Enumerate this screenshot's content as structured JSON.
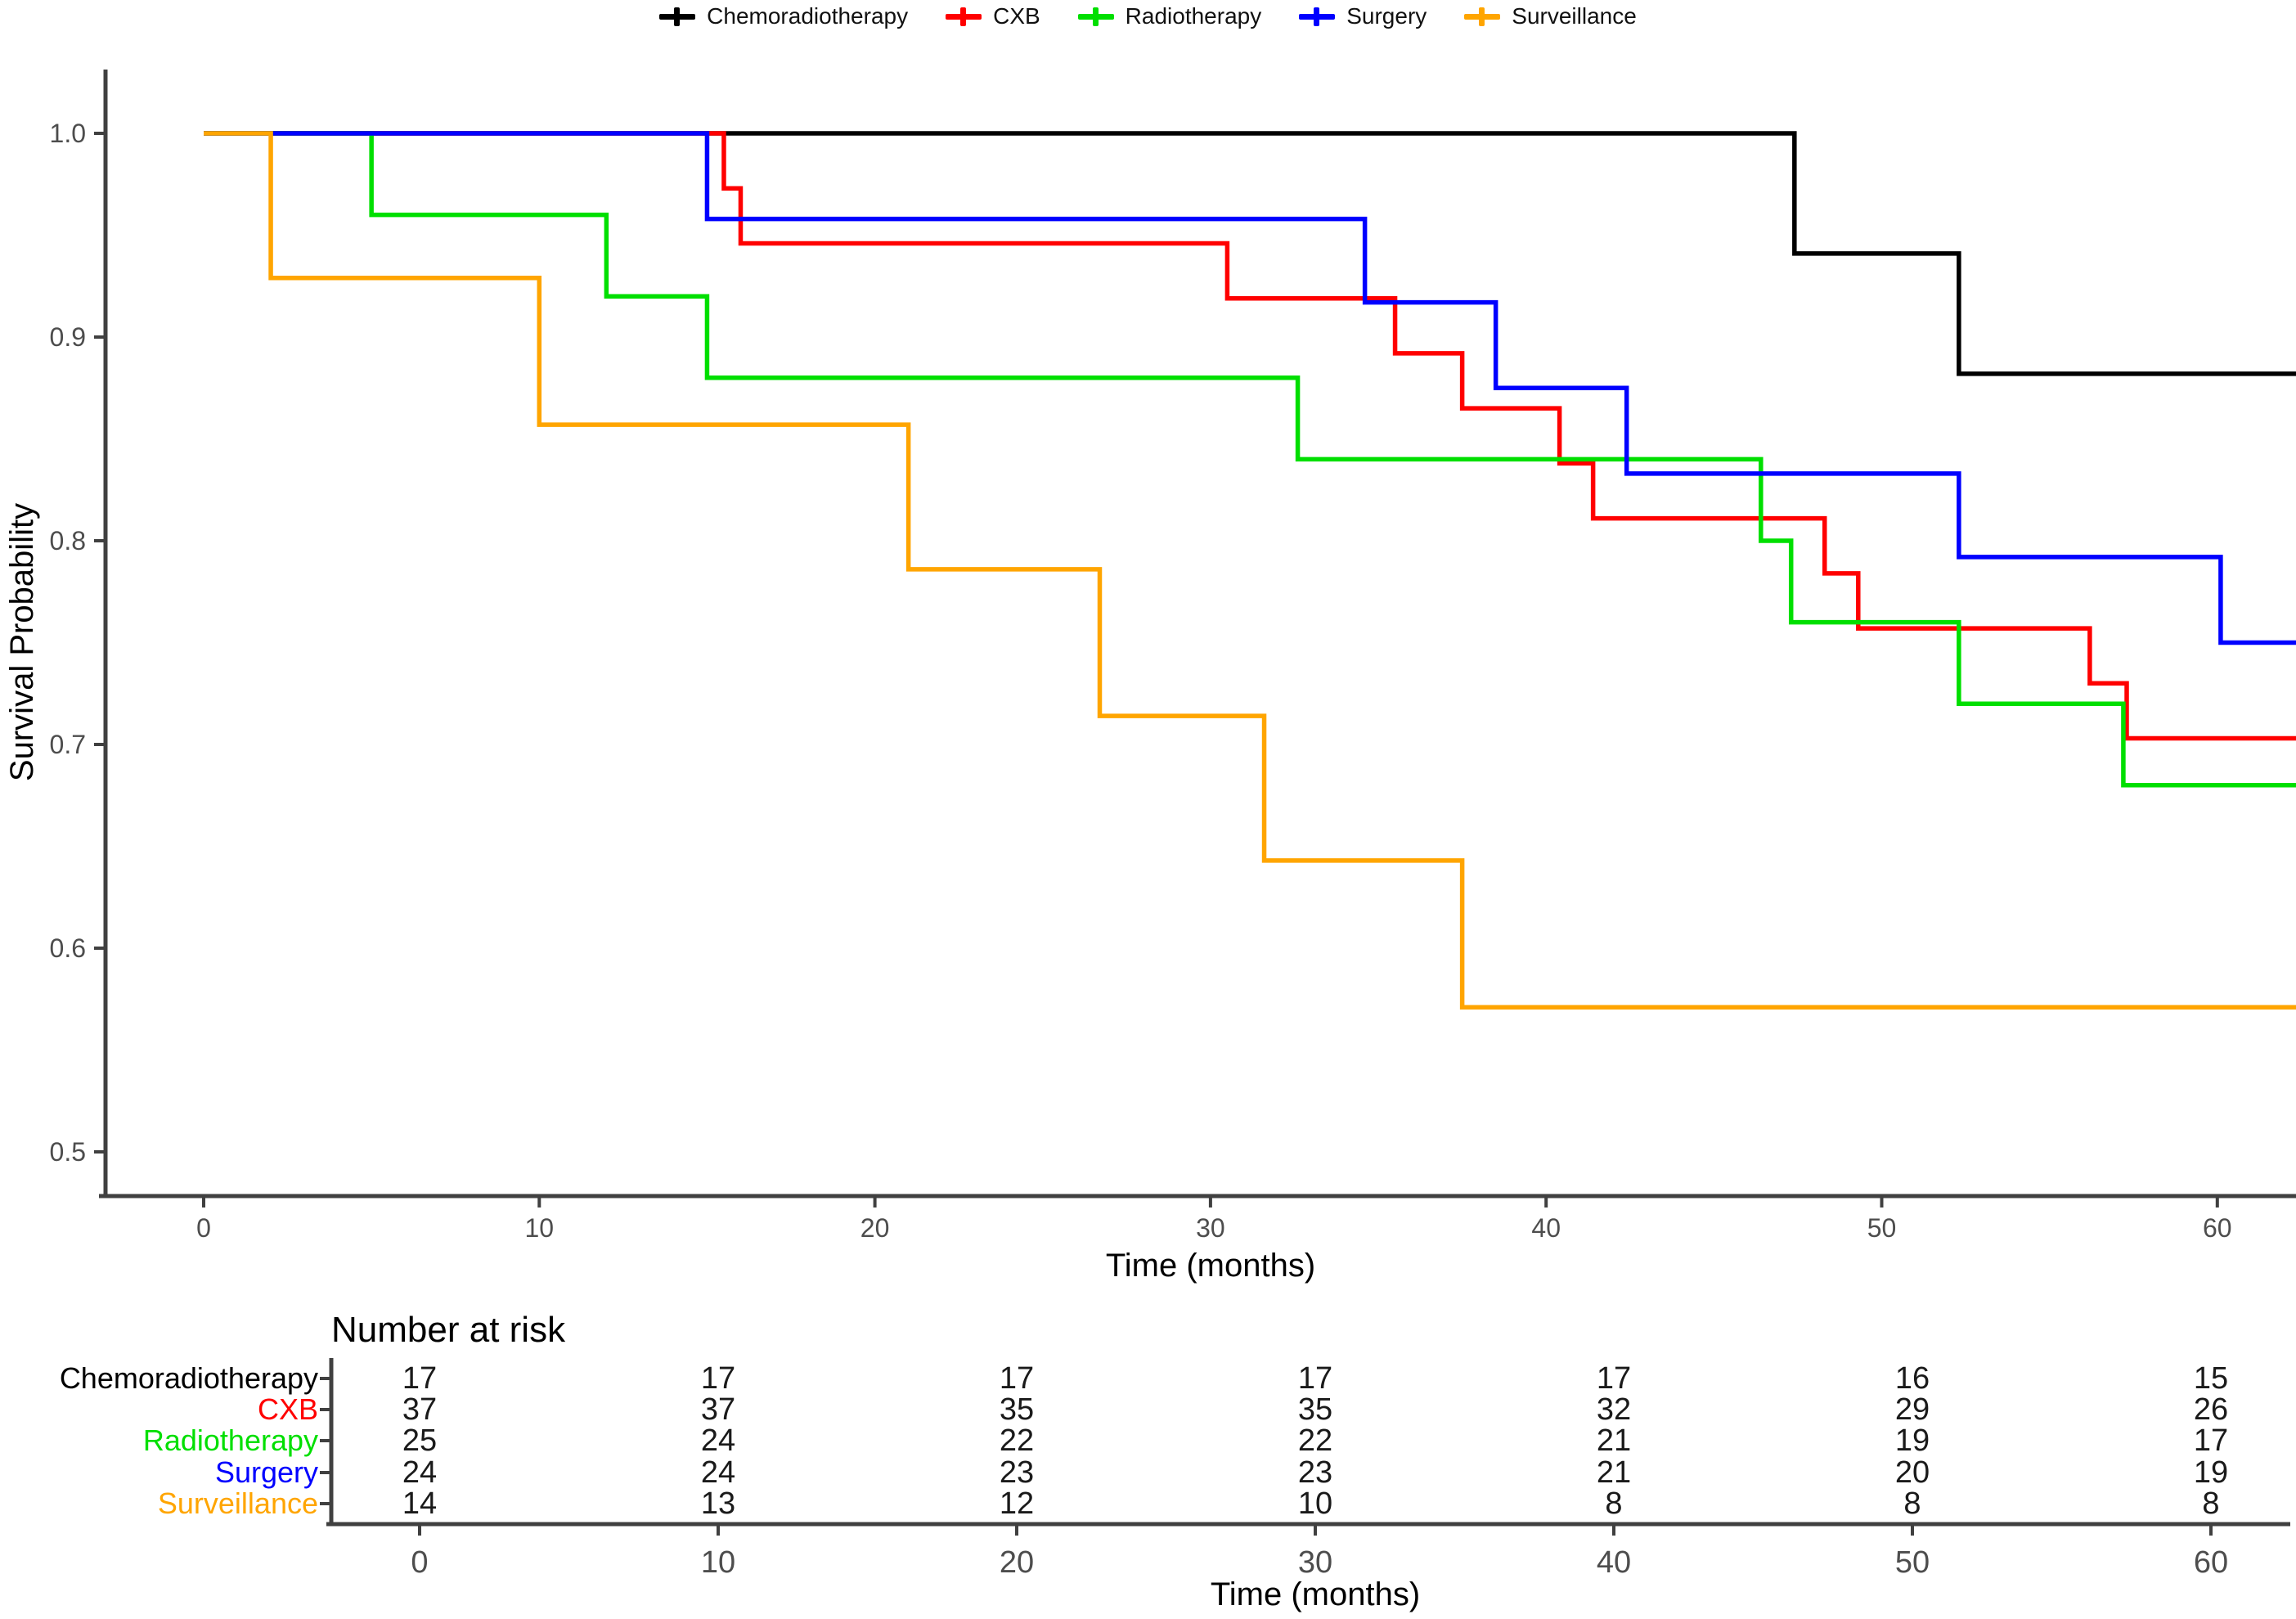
{
  "legend": {
    "items": [
      {
        "label": "Chemoradiotherapy",
        "color": "#000000"
      },
      {
        "label": "CXB",
        "color": "#FF0000"
      },
      {
        "label": "Radiotherapy",
        "color": "#00DF00"
      },
      {
        "label": "Surgery",
        "color": "#0000FF"
      },
      {
        "label": "Surveillance",
        "color": "#FFA500"
      }
    ]
  },
  "chart_data": {
    "type": "line",
    "subtype": "kaplan-meier-step",
    "title": "",
    "xlabel": "Time (months)",
    "ylabel": "Survival Probability",
    "xlim": [
      0,
      62.4
    ],
    "ylim": [
      0.47,
      1.02
    ],
    "xticks": [
      0,
      10,
      20,
      30,
      40,
      50,
      60
    ],
    "yticks": [
      0.5,
      0.6,
      0.7,
      0.8,
      0.9,
      1.0
    ],
    "ytick_labels": [
      "0.5",
      "0.6",
      "0.7",
      "0.8",
      "0.9",
      "1.0"
    ],
    "grid": false,
    "legend_position": "top",
    "series": [
      {
        "name": "Chemoradiotherapy",
        "color": "#000000",
        "steps": [
          [
            0,
            1.0
          ],
          [
            47.4,
            0.941
          ],
          [
            52.3,
            0.882
          ]
        ]
      },
      {
        "name": "CXB",
        "color": "#FF0000",
        "steps": [
          [
            0,
            1.0
          ],
          [
            15.5,
            0.973
          ],
          [
            16.0,
            0.946
          ],
          [
            30.5,
            0.919
          ],
          [
            35.5,
            0.892
          ],
          [
            37.5,
            0.865
          ],
          [
            40.4,
            0.838
          ],
          [
            41.4,
            0.811
          ],
          [
            48.3,
            0.784
          ],
          [
            49.3,
            0.757
          ],
          [
            56.2,
            0.73
          ],
          [
            57.3,
            0.703
          ]
        ]
      },
      {
        "name": "Radiotherapy",
        "color": "#00DF00",
        "steps": [
          [
            0,
            1.0
          ],
          [
            5,
            0.96
          ],
          [
            12,
            0.92
          ],
          [
            15,
            0.88
          ],
          [
            32.6,
            0.84
          ],
          [
            46.4,
            0.8
          ],
          [
            47.3,
            0.76
          ],
          [
            52.3,
            0.72
          ],
          [
            57.2,
            0.68
          ]
        ]
      },
      {
        "name": "Surgery",
        "color": "#0000FF",
        "steps": [
          [
            0,
            1.0
          ],
          [
            15,
            0.958
          ],
          [
            34.6,
            0.917
          ],
          [
            38.5,
            0.875
          ],
          [
            42.4,
            0.833
          ],
          [
            52.3,
            0.792
          ],
          [
            60.1,
            0.75
          ]
        ]
      },
      {
        "name": "Surveillance",
        "color": "#FFA500",
        "steps": [
          [
            0,
            1.0
          ],
          [
            2,
            0.929
          ],
          [
            10,
            0.857
          ],
          [
            21,
            0.786
          ],
          [
            26.7,
            0.714
          ],
          [
            31.6,
            0.643
          ],
          [
            37.5,
            0.571
          ]
        ]
      }
    ],
    "risk_table": {
      "title": "Number at risk",
      "xlabel": "Time (months)",
      "times": [
        0,
        10,
        20,
        30,
        40,
        50,
        60
      ],
      "rows": [
        {
          "label": "Chemoradiotherapy",
          "color": "#000000",
          "values": [
            17,
            17,
            17,
            17,
            17,
            16,
            15
          ]
        },
        {
          "label": "CXB",
          "color": "#FF0000",
          "values": [
            37,
            37,
            35,
            35,
            32,
            29,
            26
          ]
        },
        {
          "label": "Radiotherapy",
          "color": "#00DF00",
          "values": [
            25,
            24,
            22,
            22,
            21,
            19,
            17
          ]
        },
        {
          "label": "Surgery",
          "color": "#0000FF",
          "values": [
            24,
            24,
            23,
            23,
            21,
            20,
            19
          ]
        },
        {
          "label": "Surveillance",
          "color": "#FFA500",
          "values": [
            14,
            13,
            12,
            10,
            8,
            8,
            8
          ]
        }
      ]
    }
  }
}
